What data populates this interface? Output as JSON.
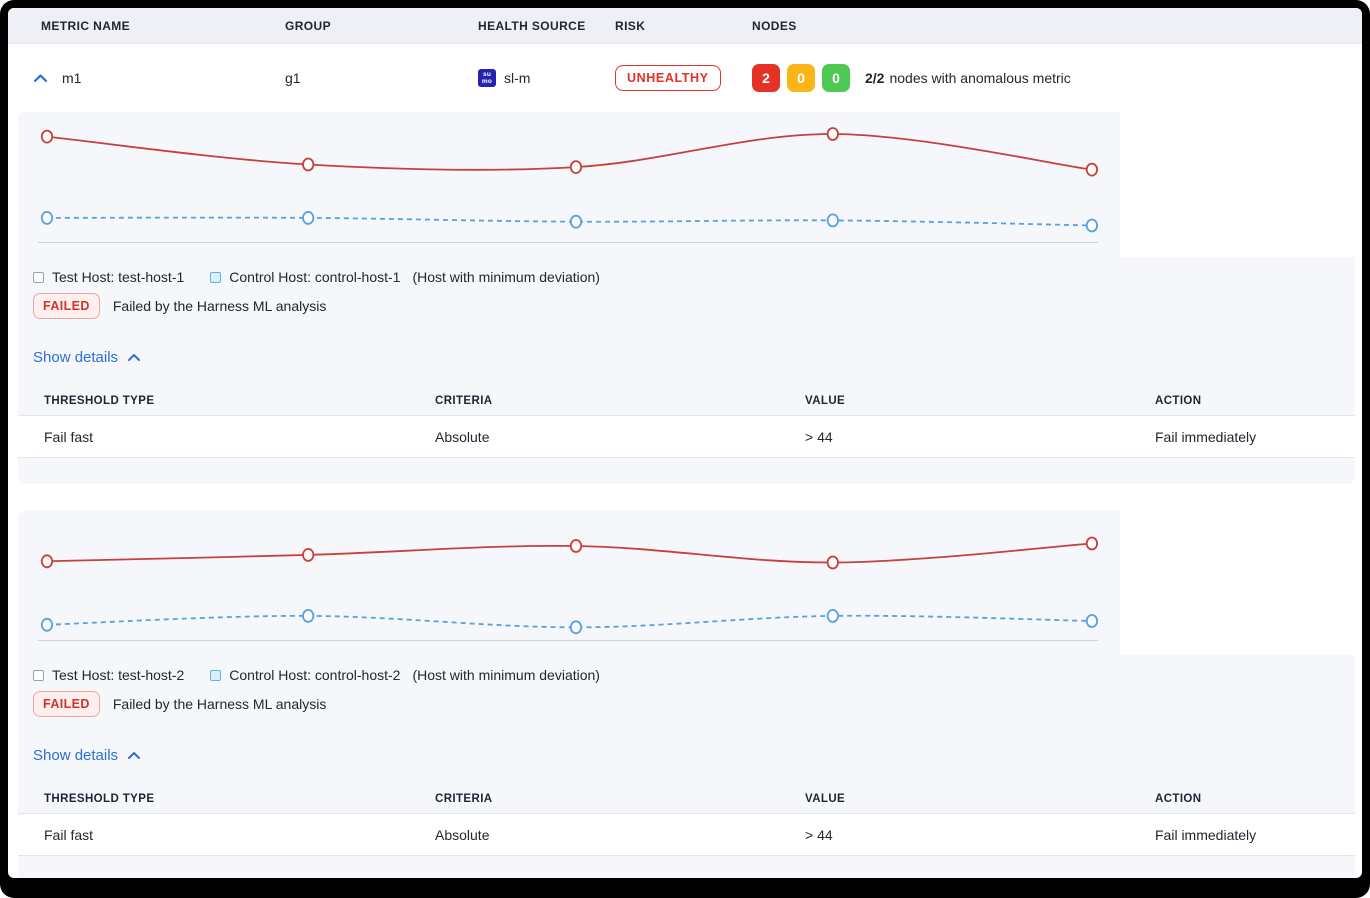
{
  "columns": {
    "metric_name": "METRIC NAME",
    "group": "GROUP",
    "health_source": "HEALTH SOURCE",
    "risk": "RISK",
    "nodes": "NODES"
  },
  "metric_row": {
    "name": "m1",
    "group": "g1",
    "health_source": {
      "label": "sl-m",
      "icon_line1": "su",
      "icon_line2": "mo",
      "icon_bg": "#2424ad"
    },
    "risk": "UNHEALTHY",
    "nodes": {
      "unhealthy_count": "2",
      "warning_count": "0",
      "healthy_count": "0",
      "summary_bold": "2/2",
      "summary_text": "nodes with anomalous metric"
    }
  },
  "sections": [
    {
      "legend": {
        "test_label": "Test Host: test-host-1",
        "control_label": "Control Host: control-host-1",
        "note": "(Host with minimum deviation)"
      },
      "status": {
        "badge": "FAILED",
        "message": "Failed by the Harness ML analysis"
      },
      "details_link": "Show details",
      "table": {
        "headers": [
          "THRESHOLD TYPE",
          "CRITERIA",
          "VALUE",
          "ACTION"
        ],
        "rows": [
          [
            "Fail fast",
            "Absolute",
            "> 44",
            "Fail immediately"
          ]
        ]
      }
    },
    {
      "legend": {
        "test_label": "Test Host: test-host-2",
        "control_label": "Control Host: control-host-2",
        "note": "(Host with minimum deviation)"
      },
      "status": {
        "badge": "FAILED",
        "message": "Failed by the Harness ML analysis"
      },
      "details_link": "Show details",
      "table": {
        "headers": [
          "THRESHOLD TYPE",
          "CRITERIA",
          "VALUE",
          "ACTION"
        ],
        "rows": [
          [
            "Fail fast",
            "Absolute",
            "> 44",
            "Fail immediately"
          ]
        ]
      }
    }
  ],
  "chart_data": [
    {
      "type": "line",
      "title": "",
      "x_percent": [
        2.1,
        26.0,
        50.5,
        74.0,
        97.7
      ],
      "ylim": [
        0,
        100
      ],
      "grid": false,
      "axis": "baseline-only",
      "series": [
        {
          "name": "Test Host: test-host-1",
          "style": "solid",
          "color": "#c6403d",
          "values": [
            83,
            61,
            59,
            85,
            57
          ]
        },
        {
          "name": "Control Host: control-host-1",
          "style": "dashed",
          "color": "#57a0e2",
          "values": [
            19,
            19,
            16,
            17,
            13
          ]
        }
      ]
    },
    {
      "type": "line",
      "title": "",
      "x_percent": [
        2.1,
        26.0,
        50.5,
        74.0,
        97.7
      ],
      "ylim": [
        0,
        100
      ],
      "grid": false,
      "axis": "baseline-only",
      "series": [
        {
          "name": "Test Host: test-host-2",
          "style": "solid",
          "color": "#c6403d",
          "values": [
            62,
            67,
            74,
            61,
            76
          ]
        },
        {
          "name": "Control Host: control-host-2",
          "style": "dashed",
          "color": "#57a0e2",
          "values": [
            12,
            19,
            10,
            19,
            15
          ]
        }
      ]
    }
  ],
  "colors": {
    "accent_blue": "#2a6fd8",
    "risk_red": "#e43326",
    "node_yellow": "#fcb519",
    "node_green": "#4dc952",
    "card_bg": "#f6f7fb",
    "header_bg": "#eef0f5",
    "axis_line": "#ccd3e2"
  }
}
